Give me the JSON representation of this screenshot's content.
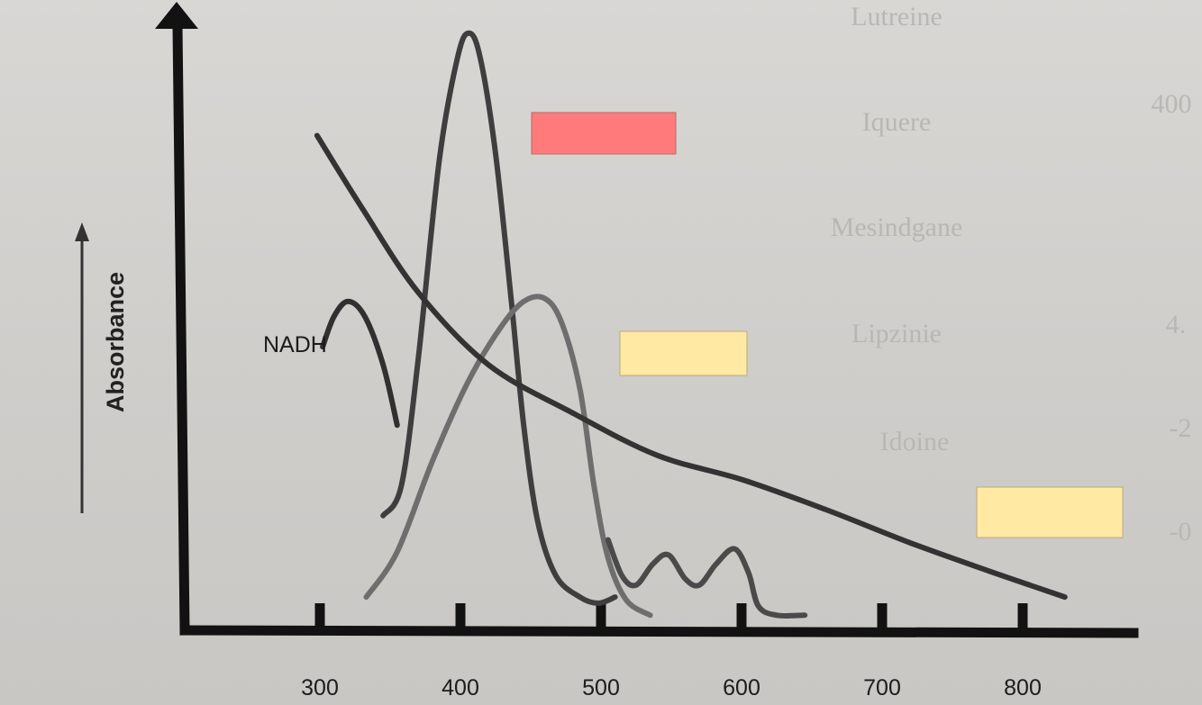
{
  "chart_data": {
    "type": "line",
    "title": "",
    "xlabel": "",
    "ylabel": "Absorbance",
    "x_ticks": [
      300,
      400,
      500,
      600,
      700,
      800
    ],
    "xlim": [
      220,
      900
    ],
    "ylim": [
      0,
      1
    ],
    "grid": false,
    "legend": "none",
    "curve_labels": {
      "nadh": "NADH"
    },
    "series": [
      {
        "id": "nadh",
        "name": "NADH",
        "color": "#303030",
        "points": [
          [
            302,
            0.47
          ],
          [
            310,
            0.52
          ],
          [
            320,
            0.545
          ],
          [
            332,
            0.52
          ],
          [
            345,
            0.44
          ],
          [
            355,
            0.34
          ]
        ]
      },
      {
        "id": "sharp_peak",
        "color": "#3e3e3e",
        "points": [
          [
            345,
            0.19
          ],
          [
            358,
            0.24
          ],
          [
            370,
            0.45
          ],
          [
            385,
            0.78
          ],
          [
            398,
            0.95
          ],
          [
            406,
            0.99
          ],
          [
            414,
            0.95
          ],
          [
            425,
            0.79
          ],
          [
            436,
            0.55
          ],
          [
            445,
            0.34
          ],
          [
            455,
            0.18
          ],
          [
            468,
            0.09
          ],
          [
            485,
            0.055
          ],
          [
            498,
            0.045
          ],
          [
            510,
            0.055
          ]
        ]
      },
      {
        "id": "broad_peak",
        "color": "#6e6e6e",
        "points": [
          [
            333,
            0.055
          ],
          [
            355,
            0.13
          ],
          [
            380,
            0.28
          ],
          [
            405,
            0.41
          ],
          [
            428,
            0.5
          ],
          [
            445,
            0.545
          ],
          [
            460,
            0.55
          ],
          [
            472,
            0.51
          ],
          [
            485,
            0.4
          ],
          [
            495,
            0.24
          ],
          [
            505,
            0.12
          ],
          [
            518,
            0.05
          ],
          [
            535,
            0.025
          ]
        ]
      },
      {
        "id": "triple_peak",
        "color": "#4a4a4a",
        "points": [
          [
            505,
            0.15
          ],
          [
            515,
            0.09
          ],
          [
            525,
            0.075
          ],
          [
            537,
            0.11
          ],
          [
            548,
            0.125
          ],
          [
            560,
            0.085
          ],
          [
            570,
            0.075
          ],
          [
            582,
            0.11
          ],
          [
            595,
            0.135
          ],
          [
            605,
            0.095
          ],
          [
            612,
            0.04
          ],
          [
            625,
            0.025
          ],
          [
            645,
            0.025
          ]
        ]
      },
      {
        "id": "decay",
        "color": "#333333",
        "points": [
          [
            298,
            0.82
          ],
          [
            330,
            0.7
          ],
          [
            370,
            0.56
          ],
          [
            420,
            0.44
          ],
          [
            480,
            0.36
          ],
          [
            540,
            0.29
          ],
          [
            600,
            0.25
          ],
          [
            660,
            0.2
          ],
          [
            720,
            0.145
          ],
          [
            780,
            0.095
          ],
          [
            830,
            0.055
          ]
        ]
      }
    ],
    "label_boxes": [
      {
        "color": "#ff7b7b",
        "text": ""
      },
      {
        "color": "#ffe9a3",
        "text": ""
      },
      {
        "color": "#ffe9a3",
        "text": ""
      }
    ]
  },
  "background_text": {
    "items": [
      "Lutreine",
      "Iquere",
      "Mesindgane",
      "Lipzinie",
      "Idoine",
      "400",
      "4.",
      "-2",
      "-0"
    ]
  }
}
